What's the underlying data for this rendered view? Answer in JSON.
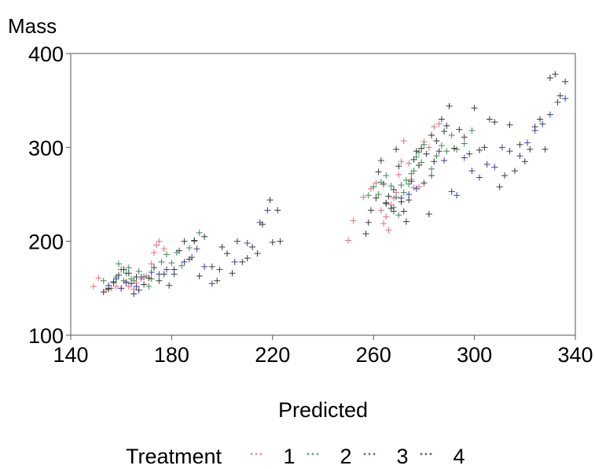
{
  "chart_data": {
    "type": "scatter",
    "title": "",
    "xlabel": "Predicted",
    "ylabel": "Mass",
    "xlim": [
      140,
      340
    ],
    "ylim": [
      100,
      400
    ],
    "xticks": [
      "140",
      "180",
      "220",
      "260",
      "300",
      "340"
    ],
    "yticks": [
      "100",
      "200",
      "300",
      "400"
    ],
    "grid": false,
    "marker": "+",
    "legend": {
      "title": "Treatment",
      "position": "bottom",
      "entries": [
        "1",
        "2",
        "3",
        "4"
      ]
    },
    "colors": {
      "1": "#e0707f",
      "2": "#3f8a54",
      "3": "#3a3fa0",
      "4": "#3a3a3a"
    },
    "series": [
      {
        "name": "1",
        "points": [
          [
            149,
            152
          ],
          [
            151,
            161
          ],
          [
            154,
            148
          ],
          [
            156,
            150
          ],
          [
            158,
            152
          ],
          [
            160,
            150
          ],
          [
            162,
            157
          ],
          [
            163,
            152
          ],
          [
            165,
            149
          ],
          [
            166,
            156
          ],
          [
            168,
            160
          ],
          [
            170,
            163
          ],
          [
            172,
            176
          ],
          [
            173,
            188
          ],
          [
            174,
            196
          ],
          [
            175,
            200
          ],
          [
            177,
            192
          ],
          [
            250,
            201
          ],
          [
            252,
            222
          ],
          [
            256,
            247
          ],
          [
            259,
            256
          ],
          [
            261,
            262
          ],
          [
            263,
            233
          ],
          [
            264,
            219
          ],
          [
            265,
            226
          ],
          [
            266,
            212
          ],
          [
            267,
            239
          ],
          [
            268,
            246
          ],
          [
            269,
            252
          ],
          [
            270,
            271
          ],
          [
            271,
            285
          ],
          [
            272,
            307
          ],
          [
            274,
            283
          ],
          [
            275,
            266
          ],
          [
            276,
            257
          ],
          [
            278,
            258
          ],
          [
            280,
            306
          ],
          [
            282,
            300
          ],
          [
            283,
            313
          ],
          [
            284,
            322
          ],
          [
            286,
            325
          ]
        ]
      },
      {
        "name": "2",
        "points": [
          [
            153,
            158
          ],
          [
            155,
            149
          ],
          [
            157,
            157
          ],
          [
            158,
            162
          ],
          [
            159,
            176
          ],
          [
            160,
            170
          ],
          [
            161,
            158
          ],
          [
            162,
            166
          ],
          [
            163,
            172
          ],
          [
            164,
            160
          ],
          [
            165,
            158
          ],
          [
            167,
            168
          ],
          [
            169,
            162
          ],
          [
            171,
            152
          ],
          [
            172,
            160
          ],
          [
            176,
            178
          ],
          [
            178,
            186
          ],
          [
            180,
            177
          ],
          [
            182,
            188
          ],
          [
            184,
            174
          ],
          [
            187,
            193
          ],
          [
            189,
            200
          ],
          [
            191,
            209
          ],
          [
            258,
            249
          ],
          [
            260,
            258
          ],
          [
            262,
            250
          ],
          [
            263,
            263
          ],
          [
            265,
            270
          ],
          [
            267,
            259
          ],
          [
            268,
            236
          ],
          [
            269,
            247
          ],
          [
            270,
            228
          ],
          [
            271,
            260
          ],
          [
            272,
            252
          ],
          [
            273,
            265
          ],
          [
            274,
            261
          ],
          [
            275,
            272
          ],
          [
            276,
            275
          ],
          [
            277,
            290
          ],
          [
            278,
            295
          ],
          [
            279,
            284
          ],
          [
            280,
            303
          ],
          [
            283,
            277
          ],
          [
            285,
            291
          ],
          [
            287,
            302
          ],
          [
            289,
            296
          ],
          [
            291,
            313
          ],
          [
            293,
            298
          ],
          [
            296,
            304
          ],
          [
            299,
            318
          ]
        ]
      },
      {
        "name": "3",
        "points": [
          [
            155,
            153
          ],
          [
            158,
            160
          ],
          [
            160,
            150
          ],
          [
            162,
            156
          ],
          [
            164,
            155
          ],
          [
            166,
            152
          ],
          [
            168,
            162
          ],
          [
            172,
            167
          ],
          [
            175,
            165
          ],
          [
            178,
            170
          ],
          [
            181,
            165
          ],
          [
            185,
            178
          ],
          [
            188,
            183
          ],
          [
            190,
            192
          ],
          [
            193,
            173
          ],
          [
            196,
            155
          ],
          [
            199,
            170
          ],
          [
            205,
            178
          ],
          [
            210,
            198
          ],
          [
            215,
            220
          ],
          [
            218,
            233
          ],
          [
            265,
            240
          ],
          [
            268,
            232
          ],
          [
            271,
            246
          ],
          [
            274,
            250
          ],
          [
            277,
            256
          ],
          [
            283,
            270
          ],
          [
            288,
            286
          ],
          [
            291,
            253
          ],
          [
            293,
            249
          ],
          [
            296,
            289
          ],
          [
            299,
            275
          ],
          [
            302,
            268
          ],
          [
            305,
            282
          ],
          [
            308,
            279
          ],
          [
            311,
            300
          ],
          [
            314,
            296
          ],
          [
            318,
            291
          ],
          [
            321,
            305
          ],
          [
            324,
            318
          ],
          [
            327,
            325
          ],
          [
            330,
            335
          ],
          [
            333,
            348
          ],
          [
            336,
            352
          ]
        ]
      },
      {
        "name": "4",
        "points": [
          [
            153,
            146
          ],
          [
            155,
            150
          ],
          [
            157,
            156
          ],
          [
            159,
            164
          ],
          [
            161,
            170
          ],
          [
            163,
            166
          ],
          [
            165,
            144
          ],
          [
            166,
            162
          ],
          [
            167,
            148
          ],
          [
            169,
            154
          ],
          [
            171,
            161
          ],
          [
            173,
            172
          ],
          [
            175,
            158
          ],
          [
            177,
            165
          ],
          [
            179,
            153
          ],
          [
            181,
            170
          ],
          [
            183,
            190
          ],
          [
            185,
            200
          ],
          [
            187,
            181
          ],
          [
            189,
            201
          ],
          [
            191,
            163
          ],
          [
            193,
            205
          ],
          [
            196,
            173
          ],
          [
            198,
            158
          ],
          [
            200,
            194
          ],
          [
            202,
            187
          ],
          [
            204,
            166
          ],
          [
            206,
            200
          ],
          [
            208,
            178
          ],
          [
            210,
            182
          ],
          [
            212,
            194
          ],
          [
            214,
            187
          ],
          [
            216,
            218
          ],
          [
            219,
            244
          ],
          [
            220,
            199
          ],
          [
            222,
            233
          ],
          [
            223,
            200
          ],
          [
            257,
            208
          ],
          [
            258,
            220
          ],
          [
            259,
            233
          ],
          [
            261,
            246
          ],
          [
            262,
            274
          ],
          [
            263,
            286
          ],
          [
            264,
            261
          ],
          [
            265,
            241
          ],
          [
            266,
            248
          ],
          [
            267,
            235
          ],
          [
            268,
            255
          ],
          [
            269,
            298
          ],
          [
            270,
            280
          ],
          [
            271,
            242
          ],
          [
            272,
            232
          ],
          [
            273,
            221
          ],
          [
            274,
            244
          ],
          [
            275,
            264
          ],
          [
            276,
            287
          ],
          [
            277,
            296
          ],
          [
            278,
            281
          ],
          [
            279,
            299
          ],
          [
            280,
            262
          ],
          [
            281,
            293
          ],
          [
            282,
            229
          ],
          [
            283,
            313
          ],
          [
            284,
            285
          ],
          [
            285,
            307
          ],
          [
            286,
            296
          ],
          [
            287,
            330
          ],
          [
            288,
            317
          ],
          [
            289,
            323
          ],
          [
            290,
            344
          ],
          [
            292,
            299
          ],
          [
            294,
            319
          ],
          [
            296,
            311
          ],
          [
            298,
            293
          ],
          [
            300,
            342
          ],
          [
            302,
            297
          ],
          [
            304,
            300
          ],
          [
            306,
            330
          ],
          [
            308,
            327
          ],
          [
            310,
            258
          ],
          [
            312,
            270
          ],
          [
            314,
            324
          ],
          [
            316,
            275
          ],
          [
            318,
            303
          ],
          [
            320,
            285
          ],
          [
            322,
            298
          ],
          [
            324,
            322
          ],
          [
            326,
            330
          ],
          [
            328,
            298
          ],
          [
            330,
            374
          ],
          [
            332,
            378
          ],
          [
            334,
            355
          ],
          [
            336,
            370
          ]
        ]
      }
    ]
  }
}
